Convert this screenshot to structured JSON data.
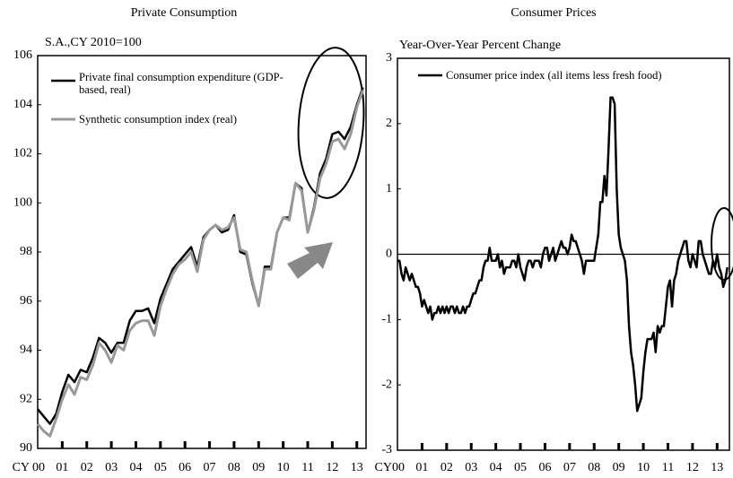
{
  "chart_data": [
    {
      "type": "line",
      "title": "Private Consumption",
      "subtitle": "S.A.,CY 2010=100",
      "x": [
        0,
        1,
        2,
        3,
        4,
        5,
        6,
        7,
        8,
        9,
        10,
        11,
        12,
        13,
        14,
        15,
        16,
        17,
        18,
        19,
        20,
        21,
        22,
        23,
        24,
        25,
        26,
        27,
        28,
        29,
        30,
        31,
        32,
        33,
        34,
        35,
        36,
        37,
        38,
        39,
        40,
        41,
        42,
        43,
        44,
        45,
        46,
        47,
        48,
        49,
        50,
        51,
        52,
        53
      ],
      "series": [
        {
          "name": "Private final consumption expenditure (GDP-based, real)",
          "color": "#000000",
          "values": [
            91.6,
            91.3,
            91.0,
            91.4,
            92.3,
            93.0,
            92.7,
            93.2,
            93.1,
            93.7,
            94.5,
            94.3,
            93.9,
            94.3,
            94.3,
            95.2,
            95.6,
            95.6,
            95.7,
            95.1,
            96.1,
            96.7,
            97.3,
            97.6,
            97.9,
            98.2,
            97.4,
            98.6,
            98.9,
            99.1,
            98.8,
            98.9,
            99.5,
            98.0,
            97.9,
            96.7,
            95.8,
            97.4,
            97.4,
            98.8,
            99.4,
            99.4,
            100.8,
            100.6,
            98.8,
            99.8,
            101.2,
            101.8,
            102.8,
            102.9,
            102.6,
            103.1,
            104.0,
            104.7
          ]
        },
        {
          "name": "Synthetic consumption index (real)",
          "color": "#999999",
          "values": [
            91.0,
            90.7,
            90.5,
            91.2,
            92.0,
            92.6,
            92.2,
            92.9,
            92.8,
            93.4,
            94.3,
            94.0,
            93.5,
            94.2,
            94.0,
            94.8,
            95.1,
            95.2,
            95.2,
            94.6,
            95.8,
            96.5,
            97.1,
            97.5,
            97.7,
            98.0,
            97.2,
            98.5,
            98.9,
            99.1,
            98.9,
            99.0,
            99.4,
            98.1,
            98.0,
            96.8,
            95.8,
            97.3,
            97.3,
            98.8,
            99.4,
            99.3,
            100.8,
            100.5,
            98.8,
            99.7,
            101.0,
            101.6,
            102.5,
            102.6,
            102.2,
            102.8,
            103.9,
            104.6
          ]
        }
      ],
      "xlim": [
        0,
        53.5
      ],
      "xticks": [
        {
          "value": 0,
          "label": "CY 00"
        },
        {
          "value": 4,
          "label": "01"
        },
        {
          "value": 8,
          "label": "02"
        },
        {
          "value": 12,
          "label": "03"
        },
        {
          "value": 16,
          "label": "04"
        },
        {
          "value": 20,
          "label": "05"
        },
        {
          "value": 24,
          "label": "06"
        },
        {
          "value": 28,
          "label": "07"
        },
        {
          "value": 32,
          "label": "08"
        },
        {
          "value": 36,
          "label": "09"
        },
        {
          "value": 40,
          "label": "10"
        },
        {
          "value": 44,
          "label": "11"
        },
        {
          "value": 48,
          "label": "12"
        },
        {
          "value": 52,
          "label": "13"
        }
      ],
      "ylim": [
        90,
        106
      ],
      "yticks": [
        90,
        92,
        94,
        96,
        98,
        100,
        102,
        104,
        106
      ]
    },
    {
      "type": "line",
      "title": "Consumer Prices",
      "subtitle": "Year-Over-Year Percent Change",
      "x": [
        0,
        1,
        2,
        3,
        4,
        5,
        6,
        7,
        8,
        9,
        10,
        11,
        12,
        13,
        14,
        15,
        16,
        17,
        18,
        19,
        20,
        21,
        22,
        23,
        24,
        25,
        26,
        27,
        28,
        29,
        30,
        31,
        32,
        33,
        34,
        35,
        36,
        37,
        38,
        39,
        40,
        41,
        42,
        43,
        44,
        45,
        46,
        47,
        48,
        49,
        50,
        51,
        52,
        53,
        54,
        55,
        56,
        57,
        58,
        59,
        60,
        61,
        62,
        63,
        64,
        65,
        66,
        67,
        68,
        69,
        70,
        71,
        72,
        73,
        74,
        75,
        76,
        77,
        78,
        79,
        80,
        81,
        82,
        83,
        84,
        85,
        86,
        87,
        88,
        89,
        90,
        91,
        92,
        93,
        94,
        95,
        96,
        97,
        98,
        99,
        100,
        101,
        102,
        103,
        104,
        105,
        106,
        107,
        108,
        109,
        110,
        111,
        112,
        113,
        114,
        115,
        116,
        117,
        118,
        119,
        120,
        121,
        122,
        123,
        124,
        125,
        126,
        127,
        128,
        129,
        130,
        131,
        132,
        133,
        134,
        135,
        136,
        137,
        138,
        139,
        140,
        141,
        142,
        143,
        144,
        145,
        146,
        147,
        148,
        149,
        150,
        151,
        152,
        153,
        154,
        155,
        156,
        157,
        158,
        159,
        160,
        161
      ],
      "series": [
        {
          "name": "Consumer price index (all items less fresh food)",
          "color": "#000000",
          "values": [
            -0.1,
            -0.1,
            -0.3,
            -0.4,
            -0.2,
            -0.3,
            -0.4,
            -0.3,
            -0.4,
            -0.5,
            -0.5,
            -0.6,
            -0.8,
            -0.7,
            -0.8,
            -0.9,
            -0.8,
            -1.0,
            -0.9,
            -0.9,
            -0.8,
            -0.9,
            -0.8,
            -0.9,
            -0.8,
            -0.9,
            -0.8,
            -0.8,
            -0.9,
            -0.8,
            -0.9,
            -0.9,
            -0.8,
            -0.9,
            -0.8,
            -0.8,
            -0.7,
            -0.6,
            -0.6,
            -0.5,
            -0.4,
            -0.4,
            -0.2,
            -0.1,
            -0.1,
            0.1,
            -0.1,
            -0.1,
            -0.1,
            0.0,
            -0.2,
            -0.1,
            -0.3,
            -0.2,
            -0.2,
            -0.2,
            -0.1,
            -0.1,
            -0.2,
            0.0,
            -0.2,
            -0.3,
            -0.4,
            -0.2,
            -0.1,
            -0.1,
            -0.2,
            -0.1,
            -0.1,
            -0.1,
            -0.2,
            0.0,
            0.1,
            0.1,
            -0.1,
            0.0,
            0.1,
            -0.1,
            0.0,
            0.1,
            0.2,
            0.1,
            0.1,
            0.0,
            0.1,
            0.3,
            0.2,
            0.2,
            0.1,
            0.0,
            -0.1,
            -0.3,
            -0.1,
            -0.1,
            -0.1,
            -0.1,
            -0.1,
            0.1,
            0.3,
            0.8,
            0.8,
            1.2,
            0.9,
            1.6,
            2.4,
            2.4,
            2.3,
            1.0,
            0.3,
            0.1,
            0.0,
            -0.1,
            -0.4,
            -1.1,
            -1.5,
            -1.7,
            -2.0,
            -2.4,
            -2.3,
            -2.2,
            -1.8,
            -1.5,
            -1.3,
            -1.3,
            -1.3,
            -1.2,
            -1.5,
            -1.1,
            -1.2,
            -1.1,
            -1.1,
            -0.8,
            -0.5,
            -0.4,
            -0.8,
            -0.4,
            -0.3,
            -0.1,
            0.0,
            0.1,
            0.2,
            0.2,
            -0.1,
            -0.2,
            0.0,
            -0.1,
            -0.2,
            0.2,
            0.2,
            0.0,
            -0.1,
            -0.2,
            -0.3,
            -0.3,
            -0.1,
            -0.2,
            0.0,
            -0.2,
            -0.3,
            -0.5,
            -0.4,
            -0.2
          ]
        }
      ],
      "xlim": [
        0,
        162
      ],
      "xticks": [
        {
          "value": 0,
          "label": "CY00"
        },
        {
          "value": 12,
          "label": "01"
        },
        {
          "value": 24,
          "label": "02"
        },
        {
          "value": 36,
          "label": "03"
        },
        {
          "value": 48,
          "label": "04"
        },
        {
          "value": 60,
          "label": "05"
        },
        {
          "value": 72,
          "label": "06"
        },
        {
          "value": 84,
          "label": "07"
        },
        {
          "value": 96,
          "label": "08"
        },
        {
          "value": 108,
          "label": "09"
        },
        {
          "value": 120,
          "label": "10"
        },
        {
          "value": 132,
          "label": "11"
        },
        {
          "value": 144,
          "label": "12"
        },
        {
          "value": 156,
          "label": "13"
        }
      ],
      "ylim": [
        -3,
        3
      ],
      "yticks": [
        -3,
        -2,
        -1,
        0,
        1,
        2,
        3
      ]
    }
  ]
}
